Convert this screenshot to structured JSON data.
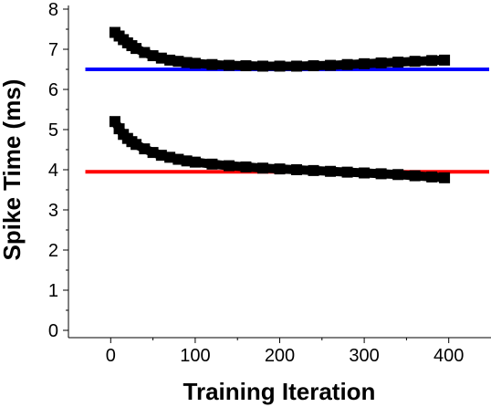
{
  "chart_data": {
    "type": "scatter",
    "title": "",
    "xlabel": "Training Iteration",
    "ylabel": "Spike Time (ms)",
    "xlim": [
      -50,
      450
    ],
    "ylim": [
      0,
      8
    ],
    "xticks": [
      0,
      100,
      200,
      300,
      400
    ],
    "yticks": [
      0,
      1,
      2,
      3,
      4,
      5,
      6,
      7,
      8
    ],
    "grid": false,
    "legend": "none",
    "series": [
      {
        "color": "#000000",
        "marker": "square",
        "x": [
          5,
          10,
          15,
          20,
          25,
          30,
          40,
          50,
          60,
          70,
          80,
          90,
          100,
          120,
          140,
          160,
          180,
          200,
          220,
          240,
          260,
          280,
          300,
          320,
          340,
          360,
          380,
          395
        ],
        "y": [
          7.42,
          7.33,
          7.24,
          7.16,
          7.09,
          7.02,
          6.92,
          6.84,
          6.78,
          6.73,
          6.7,
          6.67,
          6.65,
          6.62,
          6.6,
          6.59,
          6.58,
          6.58,
          6.58,
          6.59,
          6.6,
          6.62,
          6.64,
          6.66,
          6.68,
          6.7,
          6.72,
          6.73
        ]
      },
      {
        "color": "#000000",
        "marker": "square",
        "x": [
          5,
          10,
          15,
          20,
          25,
          30,
          40,
          50,
          60,
          70,
          80,
          90,
          100,
          120,
          140,
          160,
          180,
          200,
          220,
          240,
          260,
          280,
          300,
          320,
          340,
          360,
          380,
          395
        ],
        "y": [
          5.2,
          5.02,
          4.88,
          4.78,
          4.7,
          4.63,
          4.52,
          4.43,
          4.36,
          4.31,
          4.26,
          4.22,
          4.19,
          4.14,
          4.1,
          4.07,
          4.04,
          4.02,
          4.0,
          3.98,
          3.96,
          3.94,
          3.92,
          3.9,
          3.88,
          3.85,
          3.82,
          3.8
        ]
      }
    ],
    "reference_lines": [
      {
        "color": "#0000ff",
        "y": 6.5,
        "x_start": -30,
        "x_end": 450
      },
      {
        "color": "#ff0000",
        "y": 3.95,
        "x_start": -30,
        "x_end": 450
      }
    ]
  }
}
